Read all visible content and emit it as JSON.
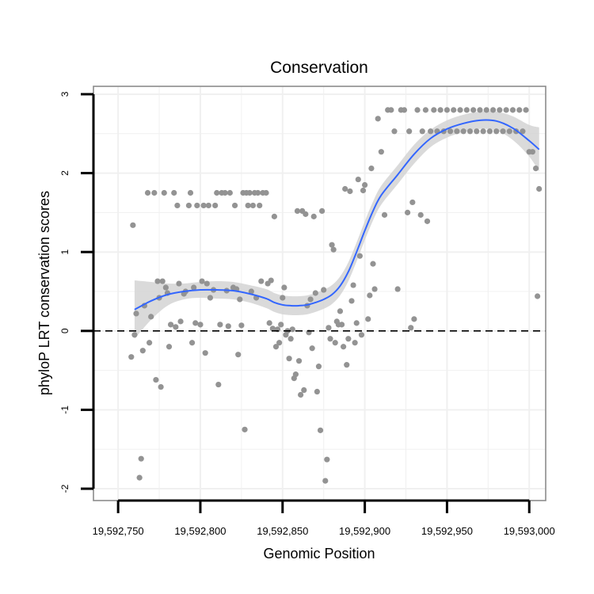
{
  "chart_data": {
    "type": "scatter",
    "title": "Conservation",
    "xlabel": "Genomic Position",
    "ylabel": "phyloP LRT conservation scores",
    "xlim": [
      19592735,
      19593010
    ],
    "ylim": [
      -2.15,
      3.1
    ],
    "x_ticks": [
      19592750,
      19592800,
      19592850,
      19592900,
      19592950,
      19593000
    ],
    "x_tick_labels": [
      "19,592,750",
      "19,592,800",
      "19,592,850",
      "19,592,900",
      "19,592,950",
      "19,593,000"
    ],
    "y_ticks": [
      -2,
      -1,
      0,
      1,
      2,
      3
    ],
    "y_tick_labels": [
      "-2",
      "-1",
      "0",
      "1",
      "2",
      "3"
    ],
    "grid": true,
    "reference_line": {
      "y": 0,
      "style": "dashed"
    },
    "colors": {
      "points": "#939393",
      "smooth_line": "#3366ff",
      "confidence_band": "#d3d3d3",
      "grid": "#f0f0f0",
      "panel_border": "#8c8c8c",
      "reference_line": "#000000"
    },
    "smooth": {
      "method": "loess",
      "x": [
        19592760,
        19592770,
        19592780,
        19592790,
        19592800,
        19592810,
        19592820,
        19592830,
        19592840,
        19592845,
        19592850,
        19592855,
        19592860,
        19592865,
        19592870,
        19592875,
        19592880,
        19592885,
        19592890,
        19592895,
        19592900,
        19592905,
        19592910,
        19592920,
        19592930,
        19592940,
        19592950,
        19592960,
        19592970,
        19592980,
        19592990,
        19593000,
        19593006
      ],
      "y": [
        0.27,
        0.38,
        0.46,
        0.5,
        0.52,
        0.52,
        0.51,
        0.47,
        0.41,
        0.36,
        0.33,
        0.32,
        0.32,
        0.33,
        0.36,
        0.4,
        0.46,
        0.57,
        0.75,
        1.0,
        1.27,
        1.52,
        1.72,
        1.98,
        2.24,
        2.44,
        2.56,
        2.63,
        2.67,
        2.66,
        2.57,
        2.41,
        2.3
      ],
      "band_upper": [
        0.64,
        0.62,
        0.6,
        0.6,
        0.62,
        0.63,
        0.62,
        0.58,
        0.53,
        0.48,
        0.45,
        0.44,
        0.44,
        0.45,
        0.48,
        0.52,
        0.58,
        0.69,
        0.87,
        1.12,
        1.39,
        1.64,
        1.84,
        2.1,
        2.36,
        2.55,
        2.67,
        2.74,
        2.78,
        2.78,
        2.72,
        2.61,
        2.58
      ],
      "band_lower": [
        -0.1,
        0.14,
        0.32,
        0.4,
        0.42,
        0.41,
        0.4,
        0.36,
        0.29,
        0.24,
        0.21,
        0.2,
        0.2,
        0.21,
        0.24,
        0.28,
        0.34,
        0.45,
        0.63,
        0.88,
        1.15,
        1.4,
        1.6,
        1.86,
        2.12,
        2.33,
        2.45,
        2.52,
        2.56,
        2.54,
        2.42,
        2.21,
        2.02
      ]
    },
    "points": [
      [
        19592758,
        -0.33
      ],
      [
        19592759,
        1.34
      ],
      [
        19592760,
        -0.05
      ],
      [
        19592761,
        0.22
      ],
      [
        19592763,
        -1.86
      ],
      [
        19592764,
        -1.62
      ],
      [
        19592765,
        -0.25
      ],
      [
        19592766,
        0.32
      ],
      [
        19592768,
        1.75
      ],
      [
        19592769,
        -0.15
      ],
      [
        19592770,
        0.18
      ],
      [
        19592772,
        1.75
      ],
      [
        19592773,
        -0.62
      ],
      [
        19592774,
        0.63
      ],
      [
        19592775,
        0.42
      ],
      [
        19592776,
        -0.71
      ],
      [
        19592777,
        0.63
      ],
      [
        19592778,
        1.75
      ],
      [
        19592779,
        0.55
      ],
      [
        19592780,
        0.48
      ],
      [
        19592781,
        -0.2
      ],
      [
        19592782,
        0.08
      ],
      [
        19592784,
        1.75
      ],
      [
        19592785,
        0.05
      ],
      [
        19592786,
        1.59
      ],
      [
        19592787,
        0.6
      ],
      [
        19592788,
        0.12
      ],
      [
        19592790,
        0.47
      ],
      [
        19592791,
        0.5
      ],
      [
        19592793,
        1.59
      ],
      [
        19592794,
        1.75
      ],
      [
        19592795,
        -0.15
      ],
      [
        19592796,
        0.55
      ],
      [
        19592797,
        0.1
      ],
      [
        19592798,
        1.59
      ],
      [
        19592800,
        0.08
      ],
      [
        19592801,
        0.63
      ],
      [
        19592802,
        1.59
      ],
      [
        19592803,
        -0.28
      ],
      [
        19592804,
        0.6
      ],
      [
        19592805,
        1.59
      ],
      [
        19592806,
        0.42
      ],
      [
        19592808,
        0.52
      ],
      [
        19592809,
        1.59
      ],
      [
        19592810,
        1.75
      ],
      [
        19592811,
        -0.68
      ],
      [
        19592812,
        0.08
      ],
      [
        19592813,
        1.75
      ],
      [
        19592815,
        1.75
      ],
      [
        19592816,
        0.51
      ],
      [
        19592817,
        0.06
      ],
      [
        19592818,
        1.75
      ],
      [
        19592820,
        0.55
      ],
      [
        19592821,
        1.59
      ],
      [
        19592822,
        0.53
      ],
      [
        19592823,
        -0.3
      ],
      [
        19592824,
        0.4
      ],
      [
        19592825,
        0.07
      ],
      [
        19592826,
        1.75
      ],
      [
        19592827,
        -1.25
      ],
      [
        19592828,
        1.75
      ],
      [
        19592829,
        1.59
      ],
      [
        19592830,
        1.75
      ],
      [
        19592831,
        0.5
      ],
      [
        19592832,
        1.59
      ],
      [
        19592833,
        1.75
      ],
      [
        19592834,
        0.42
      ],
      [
        19592835,
        1.75
      ],
      [
        19592836,
        1.59
      ],
      [
        19592837,
        0.63
      ],
      [
        19592838,
        1.75
      ],
      [
        19592840,
        1.75
      ],
      [
        19592841,
        0.6
      ],
      [
        19592842,
        0.1
      ],
      [
        19592843,
        0.64
      ],
      [
        19592844,
        0.03
      ],
      [
        19592845,
        1.45
      ],
      [
        19592846,
        -0.2
      ],
      [
        19592847,
        0.02
      ],
      [
        19592848,
        -0.15
      ],
      [
        19592849,
        0.08
      ],
      [
        19592850,
        0.42
      ],
      [
        19592851,
        0.55
      ],
      [
        19592852,
        -0.05
      ],
      [
        19592853,
        0.0
      ],
      [
        19592854,
        -0.35
      ],
      [
        19592855,
        -0.1
      ],
      [
        19592856,
        0.02
      ],
      [
        19592857,
        -0.6
      ],
      [
        19592858,
        -0.55
      ],
      [
        19592859,
        1.52
      ],
      [
        19592860,
        -0.38
      ],
      [
        19592861,
        -0.81
      ],
      [
        19592862,
        1.52
      ],
      [
        19592863,
        -0.75
      ],
      [
        19592864,
        1.48
      ],
      [
        19592865,
        0.32
      ],
      [
        19592866,
        -0.02
      ],
      [
        19592867,
        0.4
      ],
      [
        19592868,
        -0.22
      ],
      [
        19592869,
        1.45
      ],
      [
        19592870,
        0.48
      ],
      [
        19592871,
        -0.77
      ],
      [
        19592872,
        -0.45
      ],
      [
        19592873,
        -1.26
      ],
      [
        19592874,
        1.52
      ],
      [
        19592875,
        0.52
      ],
      [
        19592876,
        -1.9
      ],
      [
        19592877,
        -1.63
      ],
      [
        19592878,
        0.04
      ],
      [
        19592879,
        -0.1
      ],
      [
        19592880,
        1.09
      ],
      [
        19592881,
        1.03
      ],
      [
        19592882,
        -0.15
      ],
      [
        19592883,
        0.12
      ],
      [
        19592884,
        0.08
      ],
      [
        19592885,
        0.25
      ],
      [
        19592886,
        0.08
      ],
      [
        19592887,
        -0.2
      ],
      [
        19592888,
        1.8
      ],
      [
        19592889,
        -0.43
      ],
      [
        19592890,
        -0.1
      ],
      [
        19592891,
        1.77
      ],
      [
        19592892,
        0.38
      ],
      [
        19592893,
        0.58
      ],
      [
        19592894,
        -0.15
      ],
      [
        19592895,
        0.1
      ],
      [
        19592896,
        1.92
      ],
      [
        19592897,
        0.95
      ],
      [
        19592898,
        -0.05
      ],
      [
        19592899,
        1.78
      ],
      [
        19592900,
        1.85
      ],
      [
        19592902,
        0.15
      ],
      [
        19592903,
        0.45
      ],
      [
        19592904,
        2.06
      ],
      [
        19592905,
        0.85
      ],
      [
        19592906,
        0.53
      ],
      [
        19592908,
        2.69
      ],
      [
        19592910,
        2.27
      ],
      [
        19592912,
        1.47
      ],
      [
        19592914,
        2.8
      ],
      [
        19592916,
        2.8
      ],
      [
        19592918,
        2.53
      ],
      [
        19592920,
        0.53
      ],
      [
        19592922,
        2.8
      ],
      [
        19592924,
        2.8
      ],
      [
        19592926,
        1.5
      ],
      [
        19592927,
        2.53
      ],
      [
        19592928,
        0.04
      ],
      [
        19592929,
        1.63
      ],
      [
        19592930,
        0.15
      ],
      [
        19592932,
        2.8
      ],
      [
        19592934,
        1.47
      ],
      [
        19592935,
        2.53
      ],
      [
        19592937,
        2.8
      ],
      [
        19592938,
        1.39
      ],
      [
        19592940,
        2.53
      ],
      [
        19592942,
        2.8
      ],
      [
        19592944,
        2.53
      ],
      [
        19592946,
        2.8
      ],
      [
        19592948,
        2.53
      ],
      [
        19592950,
        2.8
      ],
      [
        19592952,
        2.53
      ],
      [
        19592954,
        2.8
      ],
      [
        19592956,
        2.53
      ],
      [
        19592958,
        2.8
      ],
      [
        19592960,
        2.53
      ],
      [
        19592962,
        2.8
      ],
      [
        19592964,
        2.53
      ],
      [
        19592966,
        2.8
      ],
      [
        19592968,
        2.53
      ],
      [
        19592970,
        2.8
      ],
      [
        19592972,
        2.53
      ],
      [
        19592974,
        2.8
      ],
      [
        19592976,
        2.53
      ],
      [
        19592978,
        2.8
      ],
      [
        19592980,
        2.53
      ],
      [
        19592982,
        2.8
      ],
      [
        19592984,
        2.53
      ],
      [
        19592986,
        2.8
      ],
      [
        19592988,
        2.53
      ],
      [
        19592990,
        2.8
      ],
      [
        19592992,
        2.53
      ],
      [
        19592994,
        2.8
      ],
      [
        19592996,
        2.53
      ],
      [
        19592998,
        2.8
      ],
      [
        19593000,
        2.27
      ],
      [
        19593002,
        2.27
      ],
      [
        19593004,
        2.06
      ],
      [
        19593005,
        0.44
      ],
      [
        19593006,
        1.8
      ]
    ]
  }
}
